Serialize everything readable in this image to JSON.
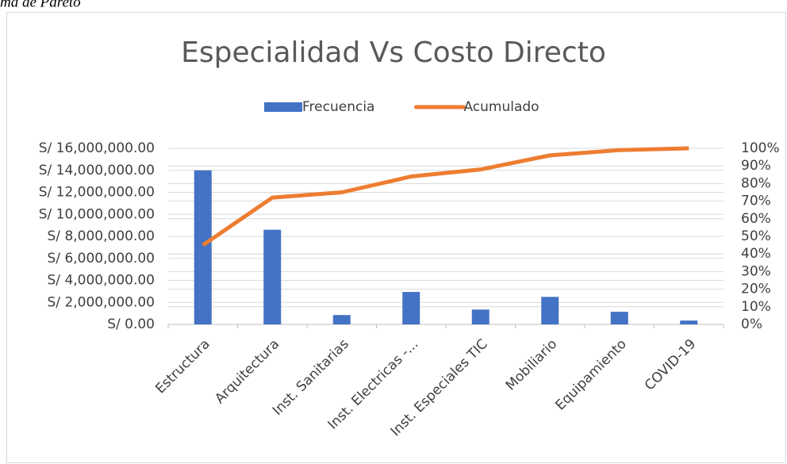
{
  "caption": "ma de Pareto",
  "chart_data": {
    "type": "pareto",
    "title": "Especialidad Vs Costo Directo",
    "categories": [
      "Estructura",
      "Arquitectura",
      "Inst. Sanitarias",
      "Inst. Electricas -...",
      "Inst. Especiales TIC",
      "Mobiliario",
      "Equipamiento",
      "COVID-19"
    ],
    "series": [
      {
        "name": "Frecuencia",
        "color": "#4472c4",
        "kind": "bar",
        "values": [
          14000000,
          8600000,
          850000,
          2950000,
          1350000,
          2500000,
          1150000,
          350000
        ]
      },
      {
        "name": "Acumulado",
        "color": "#ed7d31",
        "kind": "line",
        "axis": "y2",
        "values": [
          45,
          72,
          75,
          84,
          88,
          96,
          99,
          100
        ]
      }
    ],
    "ylim": [
      0,
      16000000
    ],
    "yticks": [
      {
        "value": 0,
        "label": "S/ 0.00"
      },
      {
        "value": 2000000,
        "label": "S/ 2,000,000.00"
      },
      {
        "value": 4000000,
        "label": "S/ 4,000,000.00"
      },
      {
        "value": 6000000,
        "label": "S/ 6,000,000.00"
      },
      {
        "value": 8000000,
        "label": "S/ 8,000,000.00"
      },
      {
        "value": 10000000,
        "label": "S/ 10,000,000.00"
      },
      {
        "value": 12000000,
        "label": "S/ 12,000,000.00"
      },
      {
        "value": 14000000,
        "label": "S/ 14,000,000.00"
      },
      {
        "value": 16000000,
        "label": "S/ 16,000,000.00"
      }
    ],
    "y2lim": [
      0,
      100
    ],
    "y2ticks": [
      {
        "value": 0,
        "label": "0%"
      },
      {
        "value": 10,
        "label": "10%"
      },
      {
        "value": 20,
        "label": "20%"
      },
      {
        "value": 30,
        "label": "30%"
      },
      {
        "value": 40,
        "label": "40%"
      },
      {
        "value": 50,
        "label": "50%"
      },
      {
        "value": 60,
        "label": "60%"
      },
      {
        "value": 70,
        "label": "70%"
      },
      {
        "value": 80,
        "label": "80%"
      },
      {
        "value": 90,
        "label": "90%"
      },
      {
        "value": 100,
        "label": "100%"
      }
    ],
    "grid": true,
    "legend": "top"
  }
}
